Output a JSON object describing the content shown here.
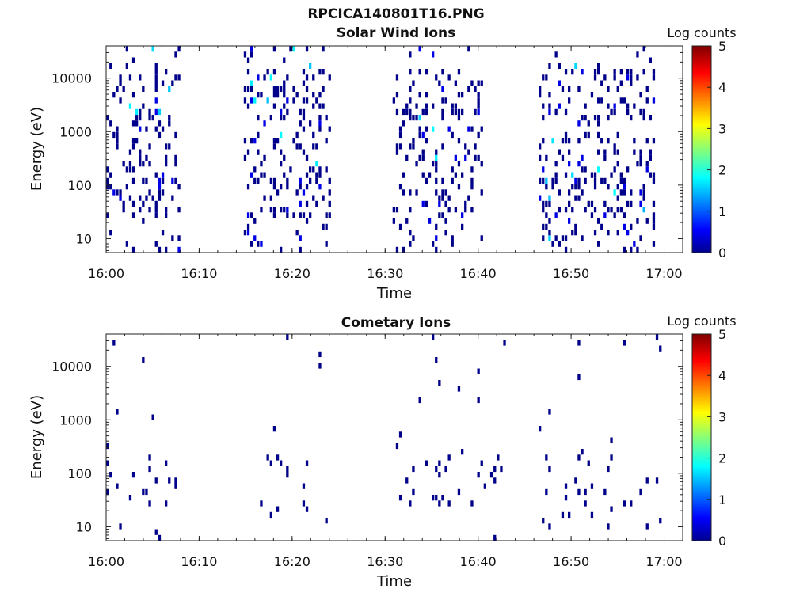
{
  "figure": {
    "title": "RPCICA140801T16.PNG"
  },
  "chart_data": [
    {
      "type": "heatmap",
      "title": "Solar Wind Ions",
      "xlabel": "Time",
      "ylabel": "Energy (eV)",
      "x_ticks": [
        "16:00",
        "16:10",
        "16:20",
        "16:30",
        "16:40",
        "16:50",
        "17:00"
      ],
      "x_range_minutes": [
        0,
        62
      ],
      "y_scale": "log",
      "y_ticks": [
        "10",
        "100",
        "1000",
        "10000"
      ],
      "y_range": [
        5.5,
        40000
      ],
      "colorbar": {
        "label": "Log counts",
        "range": [
          0,
          5
        ],
        "ticks": [
          "0",
          "1",
          "2",
          "3",
          "4",
          "5"
        ],
        "colormap": "jet"
      },
      "data_intervals_minutes": [
        [
          0.0,
          7.8
        ],
        [
          14.8,
          24.0
        ],
        [
          30.8,
          40.5
        ],
        [
          46.5,
          58.8
        ]
      ],
      "typical_log_counts": [
        0,
        1.8
      ]
    },
    {
      "type": "heatmap",
      "title": "Cometary Ions",
      "xlabel": "Time",
      "ylabel": "Energy (eV)",
      "x_ticks": [
        "16:00",
        "16:10",
        "16:20",
        "16:30",
        "16:40",
        "16:50",
        "17:00"
      ],
      "x_range_minutes": [
        0,
        62
      ],
      "y_scale": "log",
      "y_ticks": [
        "10",
        "100",
        "1000",
        "10000"
      ],
      "y_range": [
        5.5,
        40000
      ],
      "colorbar": {
        "label": "Log counts",
        "range": [
          0,
          5
        ],
        "ticks": [
          "0",
          "1",
          "2",
          "3",
          "4",
          "5"
        ],
        "colormap": "jet"
      },
      "typical_log_counts": [
        0,
        0.3
      ]
    }
  ]
}
